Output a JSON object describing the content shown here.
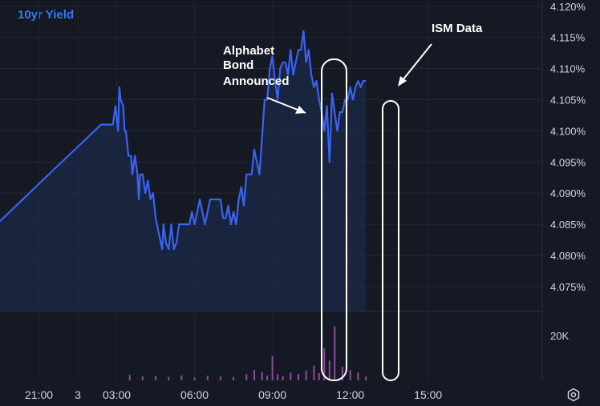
{
  "chart_data": {
    "type": "line",
    "title": "10yr Yield",
    "line_color": "#3a63f0",
    "volume_color": "#8e4a9e",
    "background": "#151924",
    "y_axis": {
      "ticks": [
        "4.120%",
        "4.115%",
        "4.110%",
        "4.105%",
        "4.100%",
        "4.095%",
        "4.090%",
        "4.085%",
        "4.080%",
        "4.075%"
      ],
      "ylim": [
        4.071,
        4.121
      ]
    },
    "volume_axis": {
      "ticks": [
        "20K"
      ]
    },
    "x_axis": {
      "ticks": [
        "21:00",
        "3",
        "03:00",
        "06:00",
        "09:00",
        "12:00",
        "15:00"
      ],
      "xlim": [
        -1.5,
        19.4
      ]
    },
    "series": [
      {
        "x": [
          -1.5,
          0.5,
          2.4,
          2.85,
          2.95,
          3.05,
          3.1,
          3.15,
          3.25,
          3.3,
          3.35,
          3.45,
          3.55,
          3.6,
          3.7,
          3.8,
          3.85,
          3.9,
          4.0,
          4.1,
          4.2,
          4.3,
          4.4,
          4.5,
          4.6,
          4.7,
          4.75,
          4.8,
          4.9,
          5.0,
          5.1,
          5.2,
          5.3,
          5.4,
          5.5,
          5.6,
          5.7,
          5.8,
          5.9,
          6.0,
          6.2,
          6.4,
          6.6,
          6.7,
          6.8,
          6.9,
          7.0,
          7.1,
          7.2,
          7.3,
          7.4,
          7.5,
          7.6,
          7.7,
          7.8,
          7.9,
          8.0,
          8.1,
          8.2,
          8.3,
          8.4,
          8.5,
          8.6,
          8.7,
          8.8,
          8.9,
          9.0,
          9.1,
          9.2,
          9.3,
          9.4,
          9.5,
          9.6,
          9.7,
          9.8,
          9.9,
          10.0,
          10.1,
          10.2,
          10.3,
          10.4,
          10.5,
          10.6,
          10.7,
          10.8,
          10.9,
          11.0,
          11.1,
          11.2,
          11.3,
          11.4,
          11.5,
          11.6,
          11.7,
          11.8,
          11.9,
          12.0,
          12.1,
          12.2,
          12.3,
          12.4,
          12.5,
          12.6
        ],
        "values": [
          4.0855,
          4.0935,
          4.101,
          4.101,
          4.104,
          4.1,
          4.107,
          4.105,
          4.104,
          4.1,
          4.1,
          4.096,
          4.096,
          4.093,
          4.096,
          4.093,
          4.089,
          4.093,
          4.093,
          4.09,
          4.092,
          4.089,
          4.09,
          4.086,
          4.084,
          4.082,
          4.081,
          4.085,
          4.082,
          4.081,
          4.085,
          4.081,
          4.082,
          4.085,
          4.085,
          4.085,
          4.085,
          4.085,
          4.087,
          4.085,
          4.089,
          4.085,
          4.089,
          4.089,
          4.089,
          4.089,
          4.089,
          4.086,
          4.086,
          4.088,
          4.085,
          4.087,
          4.085,
          4.089,
          4.091,
          4.088,
          4.093,
          4.093,
          4.093,
          4.097,
          4.095,
          4.093,
          4.099,
          4.105,
          4.105,
          4.11,
          4.112,
          4.108,
          4.105,
          4.11,
          4.111,
          4.111,
          4.109,
          4.113,
          4.109,
          4.111,
          4.113,
          4.113,
          4.116,
          4.111,
          4.113,
          4.109,
          4.107,
          4.108,
          4.105,
          4.103,
          4.1,
          4.104,
          4.095,
          4.106,
          4.103,
          4.1,
          4.103,
          4.103,
          4.105,
          4.105,
          4.107,
          4.105,
          4.107,
          4.108,
          4.107,
          4.108,
          4.108
        ]
      }
    ],
    "volume": {
      "x": [
        3.5,
        4.0,
        4.5,
        5.0,
        5.5,
        6.0,
        6.5,
        7.0,
        7.5,
        8.0,
        8.3,
        8.6,
        8.8,
        9.0,
        9.2,
        9.4,
        9.7,
        10.0,
        10.3,
        10.6,
        10.8,
        11.0,
        11.2,
        11.4,
        11.7,
        12.0,
        12.3,
        12.6
      ],
      "values": [
        2.2,
        1.6,
        1.8,
        1.4,
        2.0,
        1.2,
        1.9,
        1.6,
        1.4,
        2.4,
        4.2,
        3.5,
        2.0,
        9.8,
        2.5,
        1.8,
        3.2,
        2.6,
        4.0,
        6.0,
        3.0,
        13.0,
        8.0,
        22.0,
        5.5,
        4.0,
        3.2,
        1.5
      ]
    },
    "annotations": [
      {
        "text": [
          "Alphabet",
          "Bond",
          "Announced"
        ]
      },
      {
        "text": [
          "ISM Data"
        ]
      }
    ]
  }
}
